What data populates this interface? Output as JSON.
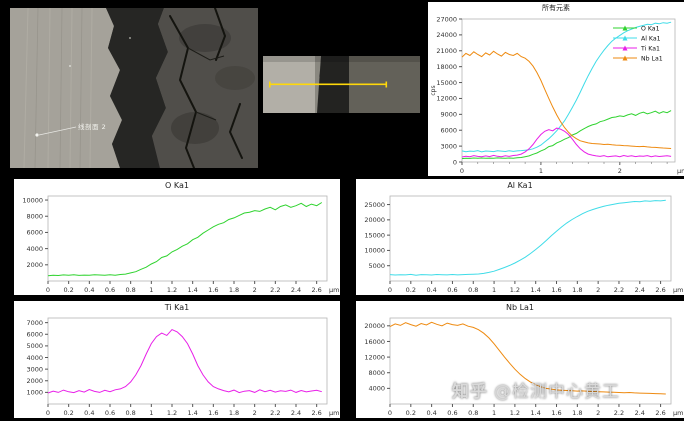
{
  "watermark": {
    "brand": "知乎",
    "handle": "@检测中心黄工"
  },
  "sem_main": {
    "label": "线剖面 2"
  },
  "chart_data": {
    "type": "line",
    "xunit": "μm",
    "xlim": [
      0,
      2.7
    ],
    "x": [
      0,
      0.05,
      0.1,
      0.15,
      0.2,
      0.25,
      0.3,
      0.35,
      0.4,
      0.45,
      0.5,
      0.55,
      0.6,
      0.65,
      0.7,
      0.75,
      0.8,
      0.85,
      0.9,
      0.95,
      1,
      1.05,
      1.1,
      1.15,
      1.2,
      1.25,
      1.3,
      1.35,
      1.4,
      1.45,
      1.5,
      1.55,
      1.6,
      1.65,
      1.7,
      1.75,
      1.8,
      1.85,
      1.9,
      1.95,
      2,
      2.05,
      2.1,
      2.15,
      2.2,
      2.25,
      2.3,
      2.35,
      2.4,
      2.45,
      2.5,
      2.55,
      2.6,
      2.65
    ],
    "series": [
      {
        "name": "O Ka1",
        "color": "#2fd32f",
        "values": [
          650,
          720,
          680,
          750,
          700,
          760,
          690,
          730,
          710,
          780,
          740,
          700,
          760,
          720,
          800,
          850,
          1000,
          1150,
          1450,
          1700,
          2100,
          2400,
          2900,
          3100,
          3600,
          3900,
          4300,
          4600,
          5100,
          5400,
          5900,
          6300,
          6700,
          7000,
          7200,
          7600,
          7800,
          8100,
          8400,
          8500,
          8700,
          8600,
          8900,
          9100,
          8800,
          9200,
          9400,
          9100,
          9300,
          9600,
          9200,
          9500,
          9300,
          9700
        ]
      },
      {
        "name": "Al Ka1",
        "color": "#3fdce8",
        "values": [
          2100,
          1950,
          2050,
          2000,
          2150,
          1900,
          2080,
          2020,
          1970,
          2120,
          2060,
          1980,
          2140,
          2010,
          2090,
          2160,
          2230,
          2300,
          2500,
          2800,
          3200,
          3800,
          4400,
          5100,
          5900,
          6800,
          7800,
          9000,
          10300,
          11700,
          13200,
          14800,
          16300,
          17700,
          19000,
          20100,
          21100,
          22000,
          22800,
          23400,
          23900,
          24400,
          24800,
          25100,
          25400,
          25600,
          25800,
          26000,
          25900,
          26200,
          26100,
          26300,
          26200,
          26400
        ]
      },
      {
        "name": "Ti Ka1",
        "color": "#e81fe8",
        "values": [
          950,
          1100,
          1000,
          1200,
          1050,
          980,
          1150,
          1020,
          1250,
          1080,
          1000,
          1180,
          1060,
          1220,
          1300,
          1500,
          1900,
          2500,
          3300,
          4300,
          5200,
          5800,
          6100,
          5900,
          6400,
          6200,
          5800,
          5200,
          4300,
          3300,
          2500,
          1900,
          1500,
          1300,
          1150,
          1050,
          1200,
          980,
          1100,
          1150,
          1000,
          1220,
          1060,
          1180,
          1020,
          1140,
          1080,
          1200,
          1000,
          1160,
          1040,
          1120,
          1180,
          1060
        ]
      },
      {
        "name": "Nb La1",
        "color": "#ee8a10",
        "values": [
          19800,
          20500,
          20100,
          20800,
          20300,
          19900,
          20600,
          20200,
          20900,
          20400,
          20000,
          20700,
          20300,
          20100,
          20500,
          19900,
          19600,
          19000,
          18100,
          16900,
          15400,
          13700,
          12000,
          10400,
          8900,
          7600,
          6500,
          5600,
          4900,
          4400,
          4000,
          3800,
          3600,
          3500,
          3450,
          3400,
          3300,
          3350,
          3250,
          3200,
          3150,
          3100,
          3050,
          3000,
          2950,
          2900,
          2950,
          2850,
          2800,
          2750,
          2700,
          2650,
          2600,
          2550
        ]
      }
    ],
    "panel_xticks": {
      "values": [
        0,
        0.2,
        0.4,
        0.6,
        0.8,
        1,
        1.2,
        1.4,
        1.6,
        1.8,
        2,
        2.2,
        2.4,
        2.6
      ],
      "labels": [
        "0",
        "0.2",
        "0.4",
        "0.6",
        "0.8",
        "1",
        "1.2",
        "1.4",
        "1.6",
        "1.8",
        "2",
        "2.2",
        "2.4",
        "2.6"
      ]
    },
    "combined": {
      "title": "所有元素",
      "ylabel": "cps",
      "ylim": [
        0,
        27000
      ],
      "yticks": [
        0,
        3000,
        6000,
        9000,
        12000,
        15000,
        18000,
        21000,
        24000,
        27000
      ],
      "xticks": {
        "values": [
          0,
          1,
          2
        ],
        "labels": [
          "0",
          "1",
          "2"
        ]
      },
      "legend": [
        "O Ka1",
        "Al Ka1",
        "Ti Ka1",
        "Nb La1"
      ]
    },
    "panels": [
      {
        "series": 0,
        "title": "O Ka1",
        "ylim": [
          0,
          10500
        ],
        "yticks": [
          2000,
          4000,
          6000,
          8000,
          10000
        ]
      },
      {
        "series": 1,
        "title": "Al Ka1",
        "ylim": [
          0,
          27800
        ],
        "yticks": [
          5000,
          10000,
          15000,
          20000,
          25000
        ]
      },
      {
        "series": 2,
        "title": "Ti Ka1",
        "ylim": [
          0,
          7400
        ],
        "yticks": [
          1000,
          2000,
          3000,
          4000,
          5000,
          6000,
          7000
        ]
      },
      {
        "series": 3,
        "title": "Nb La1",
        "ylim": [
          0,
          22000
        ],
        "yticks": [
          4000,
          8000,
          12000,
          16000,
          20000
        ]
      }
    ]
  }
}
